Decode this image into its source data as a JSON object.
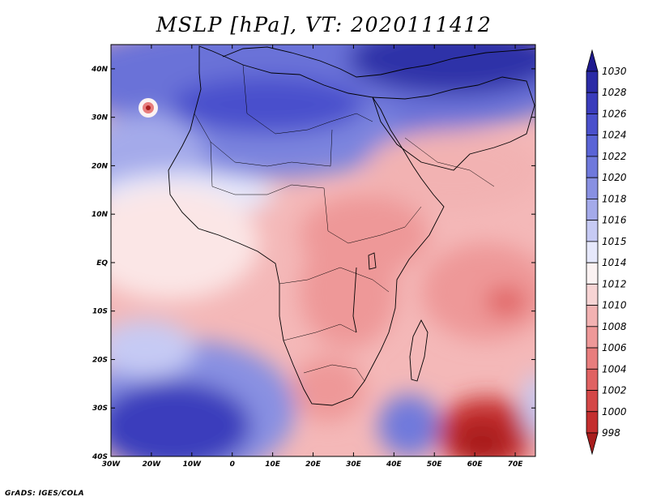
{
  "title": "MSLP [hPa], VT: 2020111412",
  "credit": "GrADS: IGES/COLA",
  "map": {
    "region": "Africa, Arabian Peninsula and surrounding oceans",
    "lon_range": [
      -30,
      75
    ],
    "lat_range": [
      -40,
      45
    ],
    "lat_ticks": [
      "40N",
      "30N",
      "20N",
      "10N",
      "EQ",
      "10S",
      "20S",
      "30S",
      "40S"
    ],
    "lon_ticks": [
      "30W",
      "20W",
      "10W",
      "0",
      "10E",
      "20E",
      "30E",
      "40E",
      "50E",
      "60E",
      "70E"
    ]
  },
  "colorbar": {
    "levels": [
      "1030",
      "1028",
      "1026",
      "1024",
      "1022",
      "1020",
      "1018",
      "1016",
      "1015",
      "1014",
      "1012",
      "1010",
      "1008",
      "1006",
      "1004",
      "1002",
      "1000",
      "998"
    ],
    "colors": [
      "#1f1a8f",
      "#2b2ba6",
      "#3a3cbc",
      "#4a50cc",
      "#5a64d6",
      "#6f79dc",
      "#8890e2",
      "#a4aaea",
      "#c6caf4",
      "#e6e8fb",
      "#fbf2f2",
      "#f7d4d4",
      "#f2b2b2",
      "#ee9898",
      "#e87d7d",
      "#e06262",
      "#d44747",
      "#c42e2e",
      "#a81d1d"
    ]
  }
}
